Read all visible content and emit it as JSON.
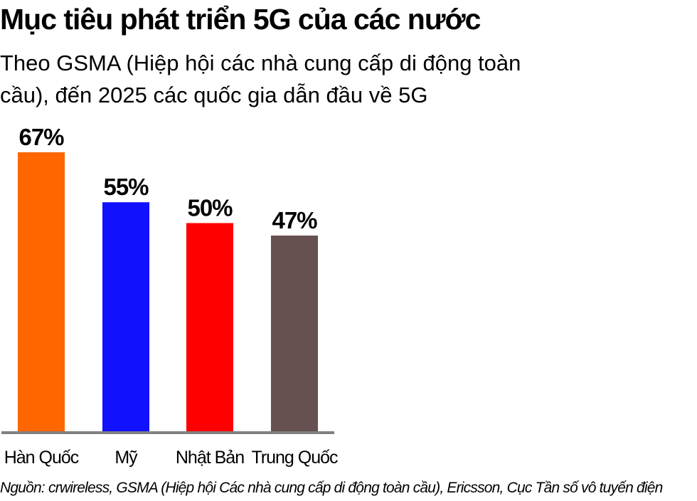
{
  "header": {
    "title": "Mục tiêu phát triển 5G của các nước",
    "subtitle": "Theo GSMA (Hiệp hội các nhà cung cấp di động toàn cầu), đến 2025 các quốc gia dẫn đầu về 5G"
  },
  "chart_data": {
    "type": "bar",
    "title": "Mục tiêu phát triển 5G của các nước",
    "subtitle": "Theo GSMA (Hiệp hội các nhà cung cấp di động toàn cầu), đến 2025 các quốc gia dẫn đầu về 5G",
    "categories": [
      "Hàn Quốc",
      "Mỹ",
      "Nhật Bản",
      "Trung Quốc"
    ],
    "values": [
      67,
      55,
      50,
      47
    ],
    "value_labels": [
      "67%",
      "55%",
      "50%",
      "47%"
    ],
    "colors": [
      "#ff6600",
      "#1111ff",
      "#ff0000",
      "#665050"
    ],
    "unit": "%",
    "ylim": [
      0,
      67
    ],
    "xlabel": "",
    "ylabel": "",
    "grid": false,
    "legend": "none"
  },
  "footer": {
    "source": "Nguồn: crwireless, GSMA (Hiệp hội Các nhà cung cấp di động toàn cầu), Ericsson, Cục Tần số vô tuyến điện"
  }
}
